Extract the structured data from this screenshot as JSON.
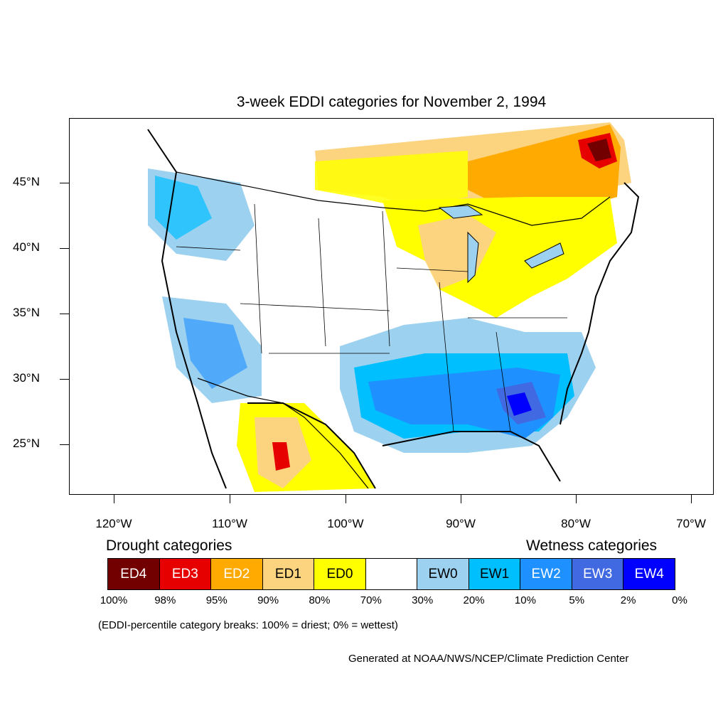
{
  "title": "3-week EDDI categories for November 2, 1994",
  "lat_labels": [
    "45°N",
    "40°N",
    "35°N",
    "30°N",
    "25°N"
  ],
  "lon_labels": [
    "120°W",
    "110°W",
    "100°W",
    "90°W",
    "80°W",
    "70°W"
  ],
  "legend": {
    "drought_heading": "Drought categories",
    "wetness_heading": "Wetness categories",
    "categories": [
      {
        "label": "ED4",
        "color": "#730000",
        "text_color": "#ffffff"
      },
      {
        "label": "ED3",
        "color": "#e60000",
        "text_color": "#ffffff"
      },
      {
        "label": "ED2",
        "color": "#ffaa00",
        "text_color": "#ffffff"
      },
      {
        "label": "ED1",
        "color": "#fcd37f",
        "text_color": "#000000"
      },
      {
        "label": "ED0",
        "color": "#ffff00",
        "text_color": "#000000"
      },
      {
        "label": "",
        "color": "#ffffff",
        "text_color": "#000000"
      },
      {
        "label": "EW0",
        "color": "#9dd1f0",
        "text_color": "#000000"
      },
      {
        "label": "EW1",
        "color": "#00bfff",
        "text_color": "#000000"
      },
      {
        "label": "EW2",
        "color": "#1e90ff",
        "text_color": "#ffffff"
      },
      {
        "label": "EW3",
        "color": "#4169e1",
        "text_color": "#ffffff"
      },
      {
        "label": "EW4",
        "color": "#0000ff",
        "text_color": "#ffffff"
      }
    ],
    "breaks": [
      "100%",
      "98%",
      "95%",
      "90%",
      "80%",
      "70%",
      "30%",
      "20%",
      "10%",
      "5%",
      "2%",
      "0%"
    ]
  },
  "note": "(EDDI-percentile category breaks: 100% = driest; 0% = wettest)",
  "credit": "Generated at NOAA/NWS/NCEP/Climate Prediction Center"
}
